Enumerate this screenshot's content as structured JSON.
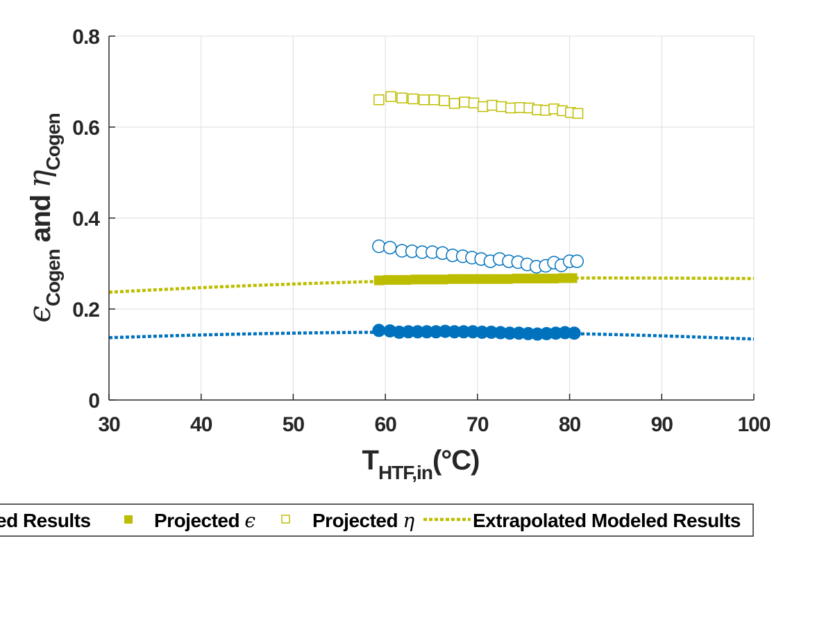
{
  "chart_data": {
    "type": "scatter",
    "xlabel": {
      "main": "T",
      "sub": "HTF,in",
      "unit": "(°C)"
    },
    "ylabel": {
      "eps": "ϵ",
      "sub1": "Cogen",
      "and": " and ",
      "eta": "η",
      "sub2": "Cogen"
    },
    "xlim": [
      30,
      100
    ],
    "ylim": [
      0,
      0.8
    ],
    "x_ticks": [
      "30",
      "40",
      "50",
      "60",
      "70",
      "80",
      "90",
      "100"
    ],
    "y_ticks": [
      "0",
      "0.2",
      "0.4",
      "0.6",
      "0.8"
    ],
    "grid": true,
    "legend": {
      "placement": "bottom",
      "entries": [
        {
          "label": "ed Results"
        },
        {
          "label": "Projected ",
          "greek": "ϵ"
        },
        {
          "label": "Projected ",
          "greek": "η"
        },
        {
          "label": "Extrapolated Modeled Results"
        }
      ]
    },
    "colors": {
      "blue": "#0072BD",
      "olive": "#BDBD00"
    },
    "series": [
      {
        "kind": "filled-circle",
        "color": "#0072BD",
        "x": [
          59.3,
          60.5,
          61.5,
          62.5,
          63.5,
          64.5,
          65.5,
          66.5,
          67.5,
          68.5,
          69.5,
          70.5,
          71.5,
          72.5,
          73.5,
          74.5,
          75.5,
          76.5,
          77.5,
          78.5,
          79.5,
          80.5
        ],
        "y": [
          0.153,
          0.152,
          0.149,
          0.15,
          0.15,
          0.15,
          0.15,
          0.151,
          0.15,
          0.15,
          0.15,
          0.149,
          0.149,
          0.148,
          0.147,
          0.147,
          0.146,
          0.145,
          0.146,
          0.147,
          0.148,
          0.147
        ]
      },
      {
        "kind": "open-circle",
        "color": "#0072BD",
        "x": [
          59.3,
          60.5,
          61.8,
          62.9,
          64.0,
          65.1,
          66.2,
          67.3,
          68.4,
          69.4,
          70.4,
          71.4,
          72.4,
          73.4,
          74.4,
          75.4,
          76.4,
          77.4,
          78.3,
          79.1,
          80.0,
          80.8
        ],
        "y": [
          0.338,
          0.335,
          0.328,
          0.327,
          0.325,
          0.325,
          0.323,
          0.318,
          0.316,
          0.313,
          0.31,
          0.305,
          0.31,
          0.305,
          0.303,
          0.298,
          0.293,
          0.295,
          0.302,
          0.296,
          0.305,
          0.305
        ]
      },
      {
        "kind": "filled-square",
        "color": "#BDBD00",
        "x": [
          59.3,
          60.3,
          61.3,
          62.3,
          63.3,
          64.3,
          65.3,
          66.3,
          67.3,
          68.3,
          69.3,
          70.3,
          71.3,
          72.3,
          73.3,
          74.3,
          75.3,
          76.3,
          77.3,
          78.3,
          79.3,
          80.3
        ],
        "y": [
          0.263,
          0.264,
          0.264,
          0.264,
          0.265,
          0.265,
          0.265,
          0.265,
          0.266,
          0.266,
          0.266,
          0.266,
          0.266,
          0.266,
          0.266,
          0.267,
          0.267,
          0.267,
          0.267,
          0.267,
          0.268,
          0.268
        ]
      },
      {
        "kind": "open-square",
        "color": "#BDBD00",
        "x": [
          59.3,
          60.6,
          61.8,
          63.0,
          64.2,
          65.3,
          66.4,
          67.5,
          68.6,
          69.6,
          70.6,
          71.6,
          72.6,
          73.6,
          74.6,
          75.6,
          76.5,
          77.4,
          78.3,
          79.2,
          80.1,
          80.9
        ],
        "y": [
          0.66,
          0.667,
          0.664,
          0.662,
          0.66,
          0.66,
          0.658,
          0.652,
          0.655,
          0.653,
          0.645,
          0.648,
          0.645,
          0.642,
          0.643,
          0.642,
          0.638,
          0.637,
          0.64,
          0.636,
          0.632,
          0.63
        ]
      },
      {
        "kind": "dotted-line",
        "color": "#BDBD00",
        "x": [
          30,
          40,
          50,
          60,
          70,
          80,
          90,
          100
        ],
        "y": [
          0.237,
          0.247,
          0.255,
          0.261,
          0.265,
          0.268,
          0.268,
          0.267
        ]
      },
      {
        "kind": "dotted-line",
        "color": "#0072BD",
        "x": [
          30,
          40,
          50,
          60,
          70,
          80,
          90,
          100
        ],
        "y": [
          0.137,
          0.143,
          0.147,
          0.149,
          0.149,
          0.146,
          0.141,
          0.134
        ]
      }
    ]
  }
}
